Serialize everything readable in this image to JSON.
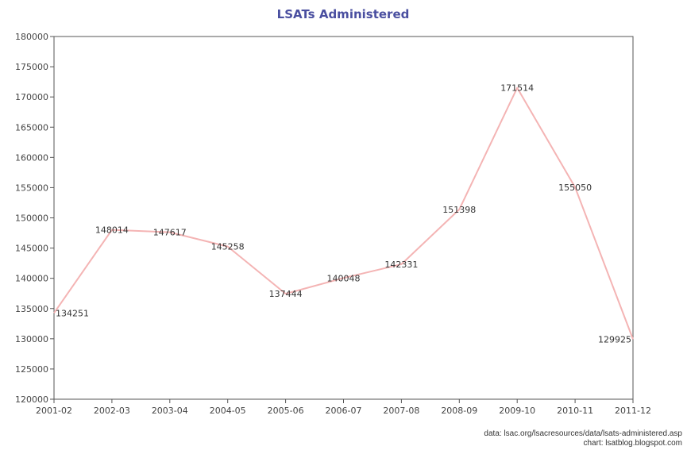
{
  "chart_data": {
    "type": "line",
    "title": "LSATs Administered",
    "xlabel": "",
    "ylabel": "",
    "categories": [
      "2001-02",
      "2002-03",
      "2003-04",
      "2004-05",
      "2005-06",
      "2006-07",
      "2007-08",
      "2008-09",
      "2009-10",
      "2010-11",
      "2011-12"
    ],
    "values": [
      134251,
      148014,
      147617,
      145258,
      137444,
      140048,
      142331,
      151398,
      171514,
      155050,
      129925
    ],
    "ylim": [
      120000,
      180000
    ],
    "yticks": [
      "120000",
      "125000",
      "130000",
      "135000",
      "140000",
      "145000",
      "150000",
      "155000",
      "160000",
      "165000",
      "170000",
      "175000",
      "180000"
    ],
    "grid": false,
    "legend": "none",
    "line_color": "#f4b4b4",
    "title_color": "#4a4fa0"
  },
  "footer": {
    "source_line": "data: lsac.org/lsacresources/data/lsats-administered.asp",
    "credit_line": "chart: lsatblog.blogspot.com"
  }
}
